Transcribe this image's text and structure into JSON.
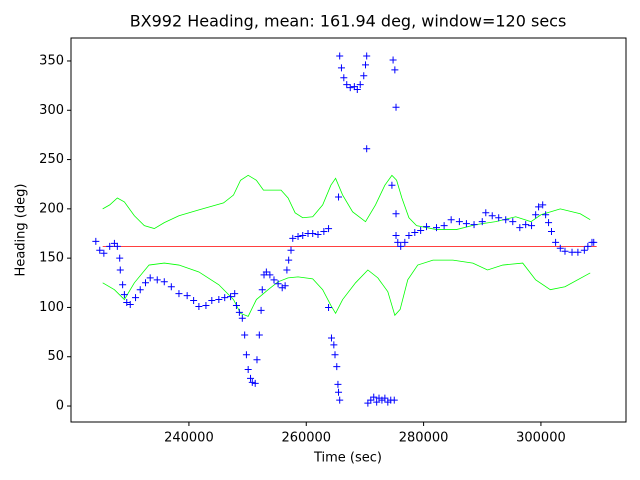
{
  "chart_data": {
    "type": "scatter",
    "title": "BX992 Heading, mean: 161.94 deg, window=120 secs",
    "x_label": "Time (sec)",
    "y_label": "Heading (deg)",
    "xlim": [
      219900,
      314500
    ],
    "ylim": [
      -16.2,
      373.3
    ],
    "xticks": [
      240000,
      260000,
      280000,
      300000
    ],
    "yticks": [
      0,
      50,
      100,
      150,
      200,
      250,
      300,
      350
    ],
    "series": [
      {
        "style": "line",
        "color": "#00ff00",
        "x": [
          225300,
          226500,
          227800,
          229000,
          230700,
          232400,
          234100,
          235800,
          238300,
          241700,
          245900,
          247600,
          248800,
          250100,
          251500,
          252700,
          254400,
          255700,
          256900,
          258100,
          259400,
          261100,
          262800,
          264200,
          265000,
          266200,
          267900,
          270100,
          271800,
          273400,
          274600,
          275400,
          276300,
          277500,
          278800,
          282200,
          285600,
          288900,
          292300,
          295700,
          298300,
          300000,
          303300,
          306700,
          308400
        ],
        "values": [
          200,
          204,
          211,
          207,
          193,
          183,
          180,
          186,
          193,
          199,
          206,
          214,
          229,
          234,
          229,
          219,
          219,
          219,
          211,
          196,
          191,
          192,
          204,
          224,
          231,
          214,
          197,
          187,
          204,
          224,
          234,
          229,
          211,
          191,
          183,
          179,
          179,
          184,
          187,
          192,
          187,
          194,
          200,
          195,
          189
        ]
      },
      {
        "style": "line",
        "color": "#00ff00",
        "x": [
          225300,
          227300,
          229000,
          230700,
          233200,
          235800,
          238300,
          241700,
          245100,
          247600,
          248800,
          250100,
          251500,
          253500,
          255200,
          256900,
          258600,
          261100,
          262800,
          264200,
          265000,
          266200,
          268400,
          270500,
          272200,
          273900,
          275100,
          276000,
          277300,
          279000,
          281600,
          285000,
          288400,
          290900,
          293500,
          296900,
          299100,
          301600,
          304100,
          308400
        ],
        "values": [
          125,
          118,
          108,
          125,
          143,
          145,
          143,
          136,
          123,
          108,
          94,
          91,
          108,
          118,
          126,
          130,
          131,
          129,
          118,
          102,
          94,
          108,
          125,
          138,
          130,
          116,
          92,
          98,
          128,
          143,
          148,
          148,
          145,
          138,
          143,
          145,
          128,
          118,
          121,
          135
        ]
      },
      {
        "style": "line",
        "color": "#ff0000",
        "x": [
          225300,
          309500
        ],
        "values": [
          161.94,
          161.94
        ]
      },
      {
        "style": "marker",
        "color": "#0000ff",
        "x": [
          224130,
          224800,
          225500,
          226500,
          227300,
          227800,
          228200,
          228300,
          228700,
          229000,
          229400,
          230000,
          230900,
          231700,
          232600,
          233400,
          234600,
          235800,
          237000,
          238300,
          239700,
          240800,
          241700,
          242900,
          243900,
          245100,
          246100,
          247100,
          247800,
          248100,
          248600,
          249100,
          249500,
          249800,
          250100,
          250500,
          250800,
          251300,
          251600,
          252000,
          252300,
          252500,
          252800,
          253200,
          253800,
          254500,
          255200,
          255900,
          256400,
          256700,
          257000,
          257400,
          257700,
          258600,
          259400,
          260300,
          261100,
          262000,
          263000,
          263800,
          263800,
          264300,
          264700,
          264900,
          265200,
          265400,
          265500,
          265700,
          265500,
          265700,
          266000,
          266400,
          266900,
          267500,
          268200,
          268700,
          269200,
          269800,
          270100,
          270300,
          270300,
          270500,
          271000,
          271500,
          272000,
          272400,
          272900,
          273400,
          273900,
          274400,
          275000,
          274600,
          274800,
          275100,
          275300,
          275300,
          275300,
          275600,
          276100,
          276800,
          277500,
          278500,
          279500,
          280500,
          282200,
          283500,
          284700,
          286100,
          287300,
          288600,
          290000,
          290600,
          291700,
          292800,
          294000,
          295200,
          296400,
          297400,
          298400,
          299100,
          299600,
          300300,
          300800,
          301300,
          301800,
          302500,
          303300,
          304100,
          305300,
          306300,
          307400,
          308000,
          308700,
          309000
        ],
        "values": [
          167,
          158,
          155,
          162,
          165,
          162,
          150,
          138,
          123,
          113,
          105,
          103,
          110,
          118,
          125,
          130,
          128,
          126,
          121,
          114,
          112,
          107,
          101,
          102,
          107,
          108,
          110,
          111,
          114,
          102,
          95,
          89,
          72,
          52,
          37,
          28,
          24,
          23,
          47,
          72,
          97,
          118,
          133,
          136,
          133,
          128,
          124,
          120,
          122,
          138,
          148,
          158,
          170,
          172,
          173,
          175,
          175,
          174,
          177,
          180,
          100,
          69,
          62,
          52,
          40,
          22,
          14,
          6,
          212,
          355,
          343,
          333,
          326,
          323,
          324,
          321,
          326,
          335,
          346,
          355,
          261,
          3,
          6,
          9,
          4,
          8,
          6,
          8,
          4,
          6,
          6,
          224,
          351,
          341,
          303,
          195,
          173,
          166,
          162,
          166,
          173,
          176,
          178,
          182,
          181,
          183,
          189,
          187,
          185,
          184,
          187,
          196,
          193,
          191,
          189,
          187,
          181,
          184,
          183,
          194,
          202,
          204,
          194,
          186,
          177,
          166,
          160,
          157,
          156,
          156,
          158,
          162,
          166,
          166
        ]
      }
    ]
  }
}
